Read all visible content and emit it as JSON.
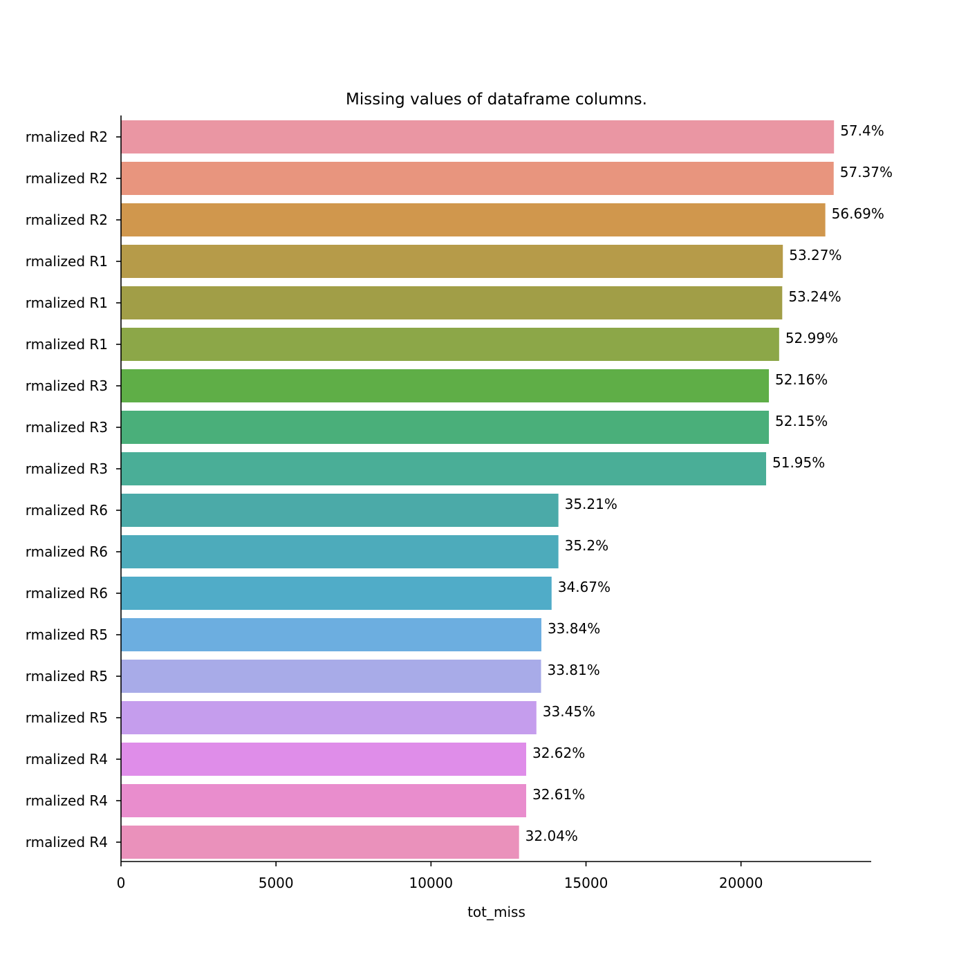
{
  "chart_data": {
    "type": "bar",
    "orientation": "horizontal",
    "title": "Missing values of dataframe columns.",
    "xlabel": "tot_miss",
    "ylabel": "",
    "xlim": [
      0,
      24200
    ],
    "x_ticks": [
      0,
      5000,
      10000,
      15000,
      20000
    ],
    "x_tick_labels": [
      "0",
      "5000",
      "10000",
      "15000",
      "20000"
    ],
    "grid": false,
    "categories": [
      "rmalized R2",
      "rmalized R2",
      "rmalized R2",
      "rmalized R1",
      "rmalized R1",
      "rmalized R1",
      "rmalized R3",
      "rmalized R3",
      "rmalized R3",
      "rmalized R6",
      "rmalized R6",
      "rmalized R6",
      "rmalized R5",
      "rmalized R5",
      "rmalized R5",
      "rmalized R4",
      "rmalized R4",
      "rmalized R4"
    ],
    "values": [
      23000,
      22990,
      22720,
      21350,
      21330,
      21230,
      20900,
      20900,
      20810,
      14110,
      14110,
      13890,
      13560,
      13550,
      13400,
      13070,
      13070,
      12840
    ],
    "data_labels": [
      "57.4%",
      "57.37%",
      "56.69%",
      "53.27%",
      "53.24%",
      "52.99%",
      "52.16%",
      "52.15%",
      "51.95%",
      "35.21%",
      "35.2%",
      "34.67%",
      "33.84%",
      "33.81%",
      "33.45%",
      "32.62%",
      "32.61%",
      "32.04%"
    ],
    "colors": [
      "#ea96a3",
      "#e8957e",
      "#d0974d",
      "#b69b49",
      "#a19e47",
      "#8ca748",
      "#5fae47",
      "#4aaf7a",
      "#4aae97",
      "#4baaa8",
      "#4dabbb",
      "#50acc8",
      "#6caee0",
      "#a8abe8",
      "#c59ded",
      "#df8de9",
      "#e98dcd",
      "#ea91bb"
    ]
  }
}
